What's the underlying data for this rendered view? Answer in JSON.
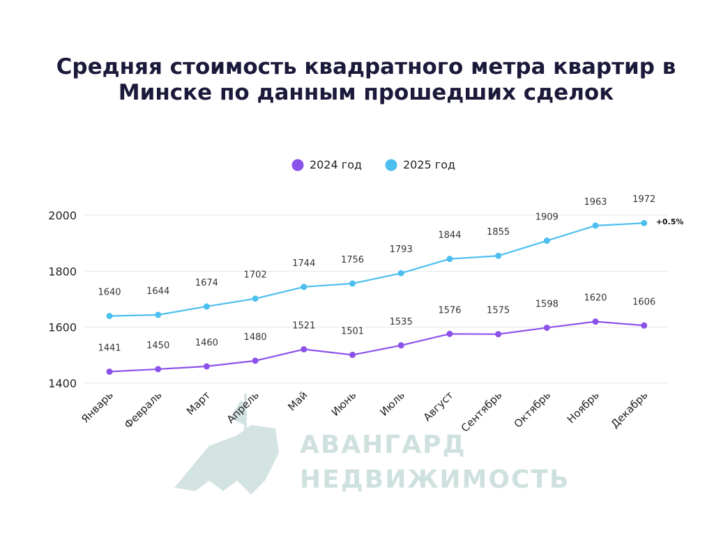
{
  "title": "Средняя стоимость квадратного метра квартир в Минске по данным прошедших сделок",
  "watermark": {
    "line1": "АВАНГАРД",
    "line2": "НЕДВИЖИМОСТЬ",
    "color": "#cfe1df"
  },
  "chart_data": {
    "type": "line",
    "categories": [
      "Январь",
      "Февраль",
      "Март",
      "Апрель",
      "Май",
      "Июнь",
      "Июль",
      "Август",
      "Сентябрь",
      "Октябрь",
      "Ноябрь",
      "Декабрь"
    ],
    "ylim": [
      1400,
      2000
    ],
    "yticks": [
      1400,
      1600,
      1800,
      2000
    ],
    "grid": true,
    "legend": "top-center",
    "series": [
      {
        "name": "2024 год",
        "color": "#8b52ea",
        "values": [
          1441,
          1450,
          1460,
          1480,
          1521,
          1501,
          1535,
          1576,
          1575,
          1598,
          1620,
          1606
        ]
      },
      {
        "name": "2025 год",
        "color": "#4cbfef",
        "values": [
          1640,
          1644,
          1674,
          1702,
          1744,
          1756,
          1793,
          1844,
          1855,
          1909,
          1963,
          1972
        ]
      }
    ],
    "annotation": "+0.5%"
  }
}
